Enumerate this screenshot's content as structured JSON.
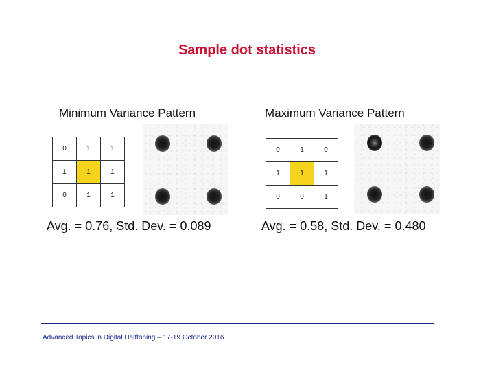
{
  "title": "Sample dot statistics",
  "left": {
    "label": "Minimum Variance Pattern",
    "grid": [
      [
        "0",
        "1",
        "1"
      ],
      [
        "1",
        "1",
        "1"
      ],
      [
        "0",
        "1",
        "1"
      ]
    ],
    "stats": "Avg. = 0.76, Std. Dev. = 0.089"
  },
  "right": {
    "label": "Maximum Variance Pattern",
    "grid": [
      [
        "0",
        "1",
        "0"
      ],
      [
        "1",
        "1",
        "1"
      ],
      [
        "0",
        "0",
        "1"
      ]
    ],
    "stats": "Avg. = 0.58, Std. Dev. = 0.480"
  },
  "footer": "Advanced Topics in Digital Halftoning – 17-19 October 2016",
  "colors": {
    "title": "#cc1133",
    "highlight": "#f5d21c",
    "footer": "#1b2a8a"
  }
}
